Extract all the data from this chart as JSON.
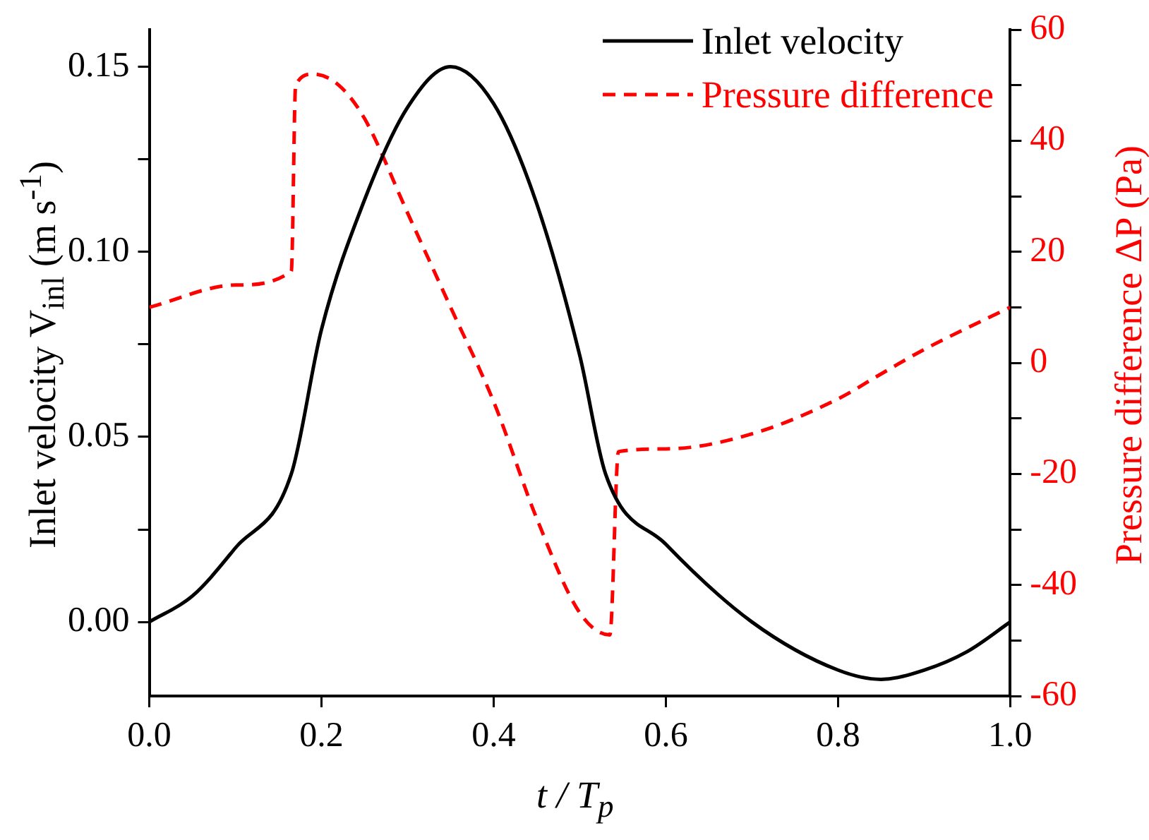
{
  "chart_data": {
    "type": "line",
    "xlabel": "t / T$_{p}$",
    "ylabel": "Inlet velocity V$_{inl}$ (m s$^{-1}$)",
    "y2label": "Pressure difference ΔP (Pa)",
    "series": [
      {
        "name": "Inlet velocity",
        "color": "#000000",
        "line_style": "solid",
        "x": [
          0,
          0.05,
          0.1,
          0.165,
          0.2,
          0.25,
          0.3,
          0.35,
          0.4,
          0.45,
          0.5,
          0.53,
          0.6,
          0.7,
          0.8,
          0.85,
          0.9,
          0.95,
          1
        ],
        "values": [
          0,
          0.007,
          0.02,
          0.04,
          0.079,
          0.114,
          0.139,
          0.15,
          0.14,
          0.113,
          0.072,
          0.04,
          0.021,
          0,
          -0.013,
          -0.0155,
          -0.013,
          -0.008,
          0
        ]
      },
      {
        "name": "Pressure difference",
        "color": "#ff0000",
        "line_style": "dashed",
        "axis": "y2",
        "x": [
          0,
          0.1,
          0.165,
          0.17,
          0.19,
          0.22,
          0.25,
          0.3,
          0.35,
          0.4,
          0.45,
          0.5,
          0.535,
          0.545,
          0.6,
          0.7,
          0.8,
          0.85,
          0.9,
          1
        ],
        "values": [
          10,
          14,
          16.5,
          50,
          52,
          50,
          44,
          27,
          10,
          -7,
          -28,
          -45,
          -49,
          -16,
          -15.5,
          -12.8,
          -6.5,
          -2,
          2.4,
          10
        ]
      }
    ],
    "xlim": [
      0,
      1
    ],
    "xticks": [
      {
        "value": 0,
        "label": "0.0"
      },
      0.2,
      0.4,
      0.6,
      0.8,
      {
        "value": 1,
        "label": "1.0"
      }
    ],
    "ylim": [
      -0.02,
      0.16
    ],
    "yticks": [
      {
        "value": 0,
        "label": "0.00"
      },
      {
        "value": 0.025,
        "label": null
      },
      0.05,
      {
        "value": 0.075,
        "label": null
      },
      {
        "value": 0.1,
        "label": "0.10"
      },
      {
        "value": 0.125,
        "label": null
      },
      0.15
    ],
    "y2lim": [
      -60,
      60
    ],
    "y2ticks": [
      -60,
      {
        "value": -50,
        "label": null
      },
      -40,
      {
        "value": -30,
        "label": null
      },
      -20,
      {
        "value": -10,
        "label": null
      },
      0,
      {
        "value": 10,
        "label": null
      },
      20,
      {
        "value": 30,
        "label": null
      },
      40,
      {
        "value": 50,
        "label": null
      },
      60
    ],
    "legend": "top right",
    "grid": false
  }
}
